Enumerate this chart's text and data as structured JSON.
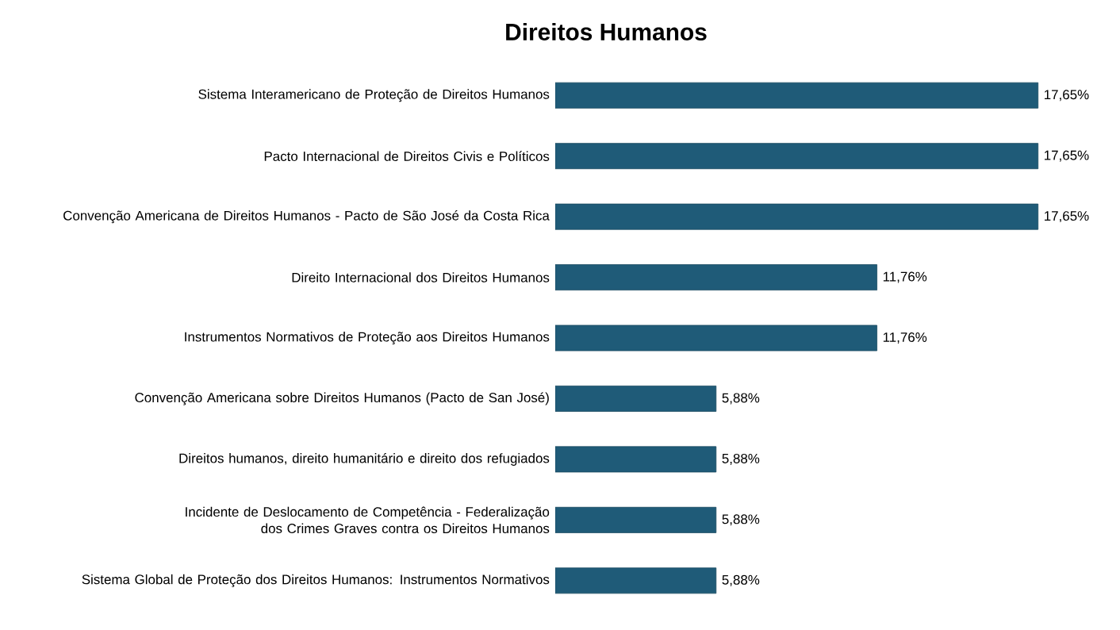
{
  "chart_data": {
    "type": "bar",
    "orientation": "horizontal",
    "title": "Direitos Humanos",
    "categories": [
      "Sistema Interamericano de Proteção de Direitos Humanos",
      "Pacto Internacional de Direitos Civis e Políticos",
      "Convenção Americana de Direitos Humanos - Pacto de São José da Costa Rica",
      "Direito Internacional dos Direitos Humanos",
      "Instrumentos Normativos de Proteção aos Direitos Humanos",
      "Convenção Americana sobre Direitos Humanos (Pacto de San José)",
      "Direitos humanos, direito humanitário e direito dos refugiados",
      "Incidente de Deslocamento de Competência - Federalização dos Crimes Graves contra os Direitos Humanos",
      "Sistema Global de Proteção dos Direitos Humanos: Instrumentos Normativos"
    ],
    "values": [
      17.65,
      17.65,
      17.65,
      11.76,
      11.76,
      5.88,
      5.88,
      5.88,
      5.88
    ],
    "value_labels": [
      "17,65%",
      "17,65%",
      "17,65%",
      "11,76%",
      "11,76%",
      "5,88%",
      "5,88%",
      "5,88%",
      "5,88%"
    ],
    "color": "#1f5b78"
  }
}
